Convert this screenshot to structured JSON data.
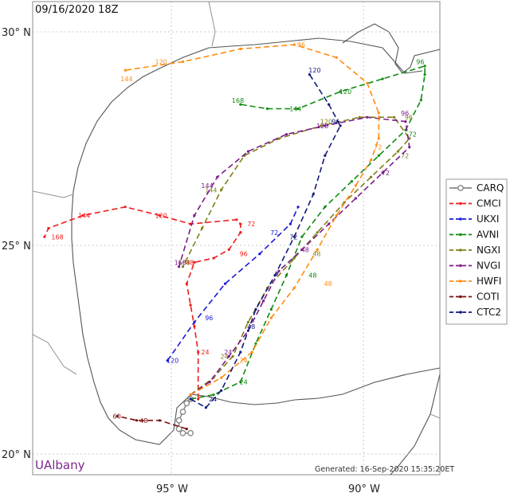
{
  "header": {
    "datetime": "09/16/2020 18Z"
  },
  "axes": {
    "lat_labels": [
      "30° N",
      "25° N",
      "20° N"
    ],
    "lon_labels": [
      "95° W",
      "90° W"
    ]
  },
  "branding": {
    "name": "UAlbany"
  },
  "footer": {
    "generated": "Generated: 16-Sep-2020 15:35:20ET"
  },
  "legend": {
    "items": [
      {
        "name": "CARQ",
        "color": "#888888"
      },
      {
        "name": "CMCI",
        "color": "#ee1c1c"
      },
      {
        "name": "UKXI",
        "color": "#1a1ad6"
      },
      {
        "name": "AVNI",
        "color": "#118a11"
      },
      {
        "name": "NGXI",
        "color": "#7f7f18"
      },
      {
        "name": "NVGI",
        "color": "#7d1d8a"
      },
      {
        "name": "HWFI",
        "color": "#ff8c12"
      },
      {
        "name": "COTI",
        "color": "#7b0d0d"
      },
      {
        "name": "CTC2",
        "color": "#111a7a"
      }
    ]
  },
  "tracks": [
    {
      "model": "CARQ",
      "color": "#888888",
      "points": [
        [
          -94.5,
          20.6
        ],
        [
          -94.7,
          20.6
        ],
        [
          -94.8,
          20.7
        ],
        [
          -94.8,
          20.9
        ],
        [
          -94.7,
          21.1
        ],
        [
          -94.6,
          21.3
        ],
        [
          -94.5,
          21.4
        ]
      ]
    },
    {
      "model": "CMCI",
      "color": "#ee1c1c",
      "points": [
        [
          -94.3,
          21.4
        ],
        [
          -94.3,
          22.5
        ],
        [
          -94.4,
          23.1
        ],
        [
          -94.5,
          23.6
        ],
        [
          -94.6,
          24.1
        ],
        [
          -94.4,
          24.6
        ],
        [
          -93.9,
          24.7
        ],
        [
          -93.5,
          24.9
        ],
        [
          -93.2,
          25.3
        ],
        [
          -93.2,
          25.5
        ],
        [
          -93.3,
          25.6
        ],
        [
          -94.5,
          25.5
        ],
        [
          -95.3,
          25.7
        ],
        [
          -96.2,
          25.9
        ],
        [
          -97.3,
          25.7
        ],
        [
          -98.2,
          25.4
        ],
        [
          -98.3,
          25.2
        ]
      ],
      "labels": [
        [
          -94.1,
          22.5,
          "24"
        ],
        [
          -94.5,
          24.6,
          "48"
        ],
        [
          -93.1,
          24.8,
          "96"
        ],
        [
          -92.9,
          25.5,
          "72"
        ],
        [
          -95.3,
          25.7,
          "120"
        ],
        [
          -97.3,
          25.7,
          "144"
        ],
        [
          -98.0,
          25.2,
          "168"
        ]
      ]
    },
    {
      "model": "UKXI",
      "color": "#1a1ad6",
      "points": [
        [
          -95.1,
          22.3
        ],
        [
          -94.4,
          23.2
        ],
        [
          -93.6,
          24.1
        ],
        [
          -92.7,
          24.8
        ],
        [
          -91.9,
          25.5
        ],
        [
          -91.7,
          25.9
        ]
      ],
      "labels": [
        [
          -94.0,
          23.3,
          "96"
        ],
        [
          -92.3,
          25.3,
          "72"
        ],
        [
          -95.0,
          22.3,
          "120"
        ]
      ]
    },
    {
      "model": "AVNI",
      "color": "#118a11",
      "points": [
        [
          -94.5,
          21.4
        ],
        [
          -93.9,
          21.5
        ],
        [
          -93.2,
          21.8
        ],
        [
          -92.8,
          22.7
        ],
        [
          -92.4,
          23.5
        ],
        [
          -92.0,
          24.3
        ],
        [
          -91.6,
          25.2
        ],
        [
          -91.0,
          25.9
        ],
        [
          -90.3,
          26.5
        ],
        [
          -89.6,
          27.1
        ],
        [
          -88.9,
          27.7
        ],
        [
          -88.5,
          28.4
        ],
        [
          -88.4,
          29.0
        ],
        [
          -88.4,
          29.2
        ],
        [
          -89.5,
          28.9
        ],
        [
          -90.6,
          28.6
        ],
        [
          -91.7,
          28.2
        ],
        [
          -92.5,
          28.2
        ],
        [
          -93.2,
          28.3
        ]
      ],
      "labels": [
        [
          -93.1,
          21.8,
          "24"
        ],
        [
          -91.3,
          24.3,
          "48"
        ],
        [
          -88.7,
          27.6,
          "72"
        ],
        [
          -88.5,
          29.3,
          "96"
        ],
        [
          -90.5,
          28.6,
          "120"
        ],
        [
          -91.8,
          28.2,
          "144"
        ],
        [
          -93.3,
          28.4,
          "168"
        ]
      ]
    },
    {
      "model": "NGXI",
      "color": "#7f7f18",
      "points": [
        [
          -94.5,
          21.5
        ],
        [
          -93.9,
          21.9
        ],
        [
          -93.4,
          22.4
        ],
        [
          -93.0,
          23.2
        ],
        [
          -92.5,
          24.0
        ],
        [
          -91.8,
          24.7
        ],
        [
          -91.2,
          25.3
        ],
        [
          -90.5,
          26.0
        ],
        [
          -89.8,
          26.6
        ],
        [
          -89.1,
          27.2
        ],
        [
          -88.8,
          27.5
        ],
        [
          -89.2,
          28.0
        ],
        [
          -90.1,
          28.0
        ],
        [
          -91.1,
          27.8
        ],
        [
          -92.2,
          27.5
        ],
        [
          -93.1,
          27.1
        ],
        [
          -93.7,
          26.3
        ],
        [
          -94.2,
          25.4
        ],
        [
          -94.7,
          24.5
        ]
      ],
      "labels": [
        [
          -93.6,
          22.4,
          "24"
        ],
        [
          -91.2,
          24.8,
          "48"
        ],
        [
          -88.9,
          27.1,
          "72"
        ],
        [
          -88.8,
          28.0,
          "96"
        ],
        [
          -91.0,
          27.9,
          "120"
        ],
        [
          -94.0,
          26.3,
          "144"
        ],
        [
          -94.7,
          24.6,
          "168"
        ]
      ]
    },
    {
      "model": "NVGI",
      "color": "#7d1d8a",
      "points": [
        [
          -94.5,
          21.5
        ],
        [
          -94.0,
          21.8
        ],
        [
          -93.5,
          22.4
        ],
        [
          -93.0,
          23.0
        ],
        [
          -92.6,
          23.7
        ],
        [
          -92.2,
          24.4
        ],
        [
          -91.6,
          24.9
        ],
        [
          -90.9,
          25.5
        ],
        [
          -90.2,
          26.1
        ],
        [
          -89.5,
          26.7
        ],
        [
          -88.8,
          27.3
        ],
        [
          -88.9,
          27.9
        ],
        [
          -89.9,
          28.0
        ],
        [
          -91.0,
          27.8
        ],
        [
          -92.0,
          27.6
        ],
        [
          -93.0,
          27.2
        ],
        [
          -93.8,
          26.6
        ],
        [
          -94.4,
          25.7
        ],
        [
          -94.8,
          24.5
        ]
      ],
      "labels": [
        [
          -93.5,
          22.5,
          "24"
        ],
        [
          -91.5,
          24.9,
          "48"
        ],
        [
          -89.4,
          26.7,
          "72"
        ],
        [
          -88.9,
          28.1,
          "96"
        ],
        [
          -91.1,
          27.8,
          "120"
        ],
        [
          -94.1,
          26.4,
          "144"
        ],
        [
          -94.8,
          24.6,
          "168"
        ]
      ]
    },
    {
      "model": "HWFI",
      "color": "#ff8c12",
      "points": [
        [
          -94.5,
          21.5
        ],
        [
          -93.7,
          21.9
        ],
        [
          -92.9,
          22.5
        ],
        [
          -92.4,
          23.3
        ],
        [
          -91.8,
          24.0
        ],
        [
          -91.2,
          24.9
        ],
        [
          -90.7,
          25.7
        ],
        [
          -90.2,
          26.4
        ],
        [
          -89.8,
          27.0
        ],
        [
          -89.6,
          27.5
        ],
        [
          -89.6,
          28.1
        ],
        [
          -89.9,
          28.8
        ],
        [
          -90.7,
          29.4
        ],
        [
          -91.8,
          29.7
        ],
        [
          -93.2,
          29.6
        ],
        [
          -94.7,
          29.3
        ],
        [
          -96.2,
          29.1
        ]
      ],
      "labels": [
        [
          -93.1,
          22.3,
          "24"
        ],
        [
          -90.9,
          24.1,
          "48"
        ],
        [
          -89.6,
          27.3,
          "72"
        ],
        [
          -91.6,
          29.7,
          "96"
        ],
        [
          -95.3,
          29.3,
          "120"
        ],
        [
          -96.2,
          28.9,
          "144"
        ]
      ]
    },
    {
      "model": "COTI",
      "color": "#7b0d0d",
      "points": [
        [
          -94.6,
          20.7
        ],
        [
          -95.3,
          20.9
        ],
        [
          -95.9,
          20.9
        ],
        [
          -96.4,
          21.0
        ]
      ],
      "labels": [
        [
          -95.7,
          20.9,
          "48"
        ],
        [
          -96.4,
          21.0,
          "60"
        ]
      ]
    },
    {
      "model": "CTC2",
      "color": "#111a7a",
      "points": [
        [
          -94.5,
          21.4
        ],
        [
          -94.1,
          21.2
        ],
        [
          -93.7,
          21.6
        ],
        [
          -93.2,
          22.5
        ],
        [
          -92.8,
          23.5
        ],
        [
          -92.3,
          24.3
        ],
        [
          -91.8,
          25.2
        ],
        [
          -91.3,
          26.2
        ],
        [
          -91.0,
          27.1
        ],
        [
          -90.6,
          27.8
        ],
        [
          -90.9,
          28.3
        ],
        [
          -91.4,
          29.0
        ]
      ],
      "labels": [
        [
          -93.9,
          21.4,
          "24"
        ],
        [
          -92.9,
          23.1,
          "48"
        ],
        [
          -91.8,
          25.2,
          "72"
        ],
        [
          -90.7,
          27.9,
          "96"
        ],
        [
          -91.3,
          29.1,
          "120"
        ]
      ]
    }
  ]
}
